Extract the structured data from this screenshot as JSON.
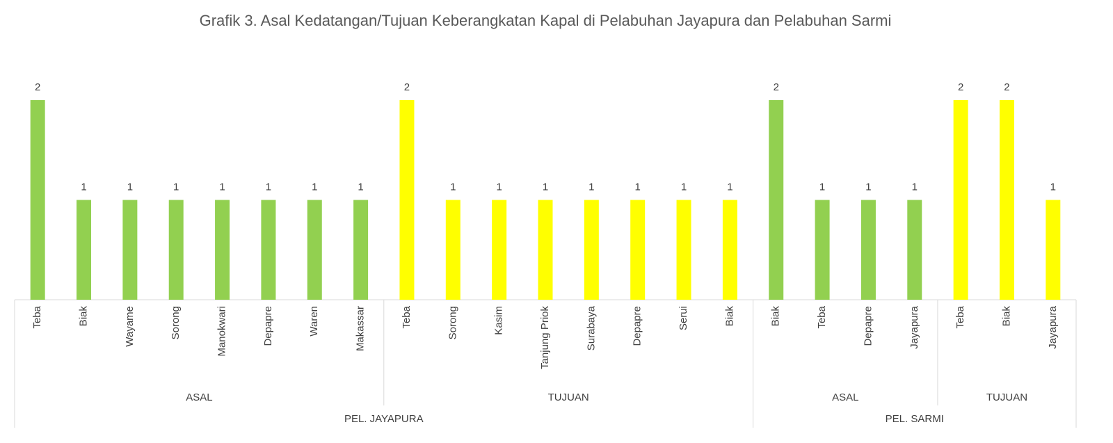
{
  "chart_data": {
    "type": "bar",
    "title": "Grafik 3. Asal Kedatangan/Tujuan Keberangkatan Kapal di Pelabuhan Jayapura dan Pelabuhan Sarmi",
    "ports": [
      {
        "name": "PEL. JAYAPURA",
        "groups": [
          {
            "name": "ASAL",
            "color": "#92d050",
            "categories": [
              "Teba",
              "Biak",
              "Wayame",
              "Sorong",
              "Manokwari",
              "Depapre",
              "Waren",
              "Makassar"
            ],
            "values": [
              2,
              1,
              1,
              1,
              1,
              1,
              1,
              1
            ]
          },
          {
            "name": "TUJUAN",
            "color": "#ffff00",
            "categories": [
              "Teba",
              "Sorong",
              "Kasim",
              "Tanjung Priok",
              "Surabaya",
              "Depapre",
              "Serui",
              "Biak"
            ],
            "values": [
              2,
              1,
              1,
              1,
              1,
              1,
              1,
              1
            ]
          }
        ]
      },
      {
        "name": "PEL. SARMI",
        "groups": [
          {
            "name": "ASAL",
            "color": "#92d050",
            "categories": [
              "Biak",
              "Teba",
              "Depapre",
              "Jayapura"
            ],
            "values": [
              2,
              1,
              1,
              1
            ]
          },
          {
            "name": "TUJUAN",
            "color": "#ffff00",
            "categories": [
              "Teba",
              "Biak",
              "Jayapura"
            ],
            "values": [
              2,
              2,
              1
            ]
          }
        ]
      }
    ]
  }
}
